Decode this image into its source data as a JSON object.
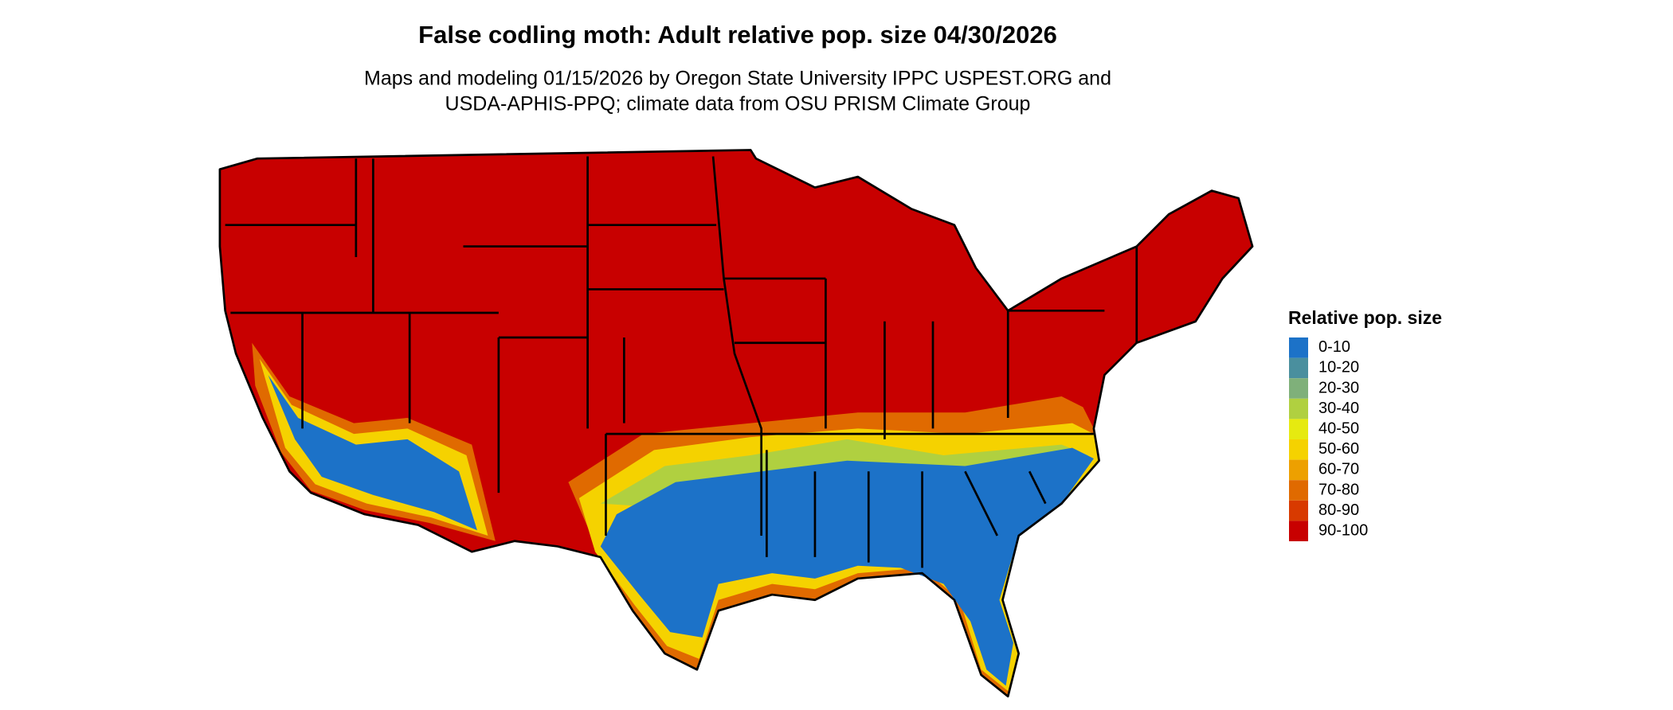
{
  "title": "False codling moth: Adult relative pop. size 04/30/2026",
  "subtitle": [
    "Maps and modeling 01/15/2026 by Oregon State University IPPC USPEST.ORG and",
    "USDA-APHIS-PPQ; climate data from OSU PRISM Climate Group"
  ],
  "legend": {
    "title": "Relative pop. size",
    "items": [
      {
        "label": "0-10",
        "color": "#1c72c8"
      },
      {
        "label": "10-20",
        "color": "#4a8f9e"
      },
      {
        "label": "20-30",
        "color": "#7fb07a"
      },
      {
        "label": "30-40",
        "color": "#b0d040"
      },
      {
        "label": "40-50",
        "color": "#e6ea10"
      },
      {
        "label": "50-60",
        "color": "#f5d200"
      },
      {
        "label": "60-70",
        "color": "#eda000"
      },
      {
        "label": "70-80",
        "color": "#e06a00"
      },
      {
        "label": "80-90",
        "color": "#d83a00"
      },
      {
        "label": "90-100",
        "color": "#c80000"
      }
    ]
  }
}
